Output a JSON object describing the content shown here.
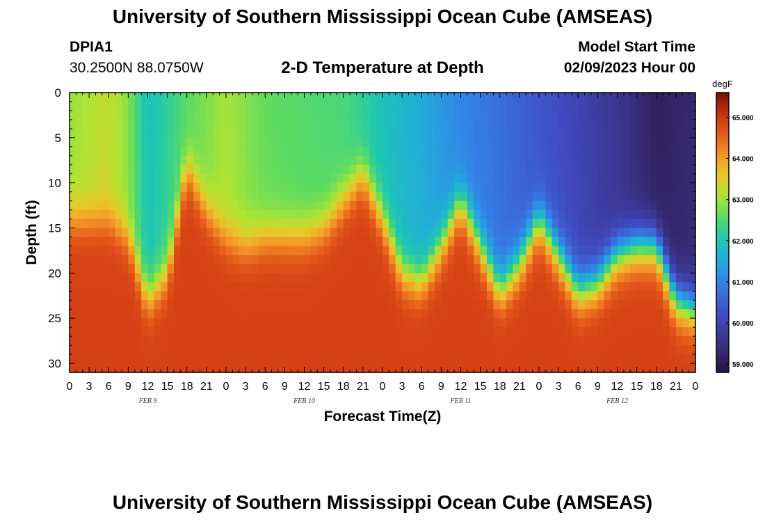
{
  "header": {
    "title": "University of Southern Mississippi Ocean Cube (AMSEAS)",
    "station_id": "DPIA1",
    "station_coords": "30.2500N  88.0750W",
    "plot_title": "2-D Temperature at Depth",
    "model_start_label": "Model Start Time",
    "model_start_value": "02/09/2023 Hour 00"
  },
  "footer": {
    "title": "University of Southern Mississippi Ocean Cube (AMSEAS)"
  },
  "chart_data": {
    "type": "heatmap",
    "xlabel": "Forecast Time(Z)",
    "ylabel": "Depth (ft)",
    "xlim": [
      0,
      96
    ],
    "ylim": [
      0,
      31
    ],
    "y_inverted": true,
    "x_ticks": [
      0,
      3,
      6,
      9,
      12,
      15,
      18,
      21,
      24,
      27,
      30,
      33,
      36,
      39,
      42,
      45,
      48,
      51,
      54,
      57,
      60,
      63,
      66,
      69,
      72,
      75,
      78,
      81,
      84,
      87,
      90,
      93,
      96
    ],
    "x_tick_labels": [
      "0",
      "3",
      "6",
      "9",
      "12",
      "15",
      "18",
      "21",
      "0",
      "3",
      "6",
      "9",
      "12",
      "15",
      "18",
      "21",
      "0",
      "3",
      "6",
      "9",
      "12",
      "15",
      "18",
      "21",
      "0",
      "3",
      "6",
      "9",
      "12",
      "15",
      "18",
      "21",
      "0"
    ],
    "y_ticks": [
      0,
      5,
      10,
      15,
      20,
      25,
      30
    ],
    "y_tick_labels": [
      "0",
      "5",
      "10",
      "15",
      "20",
      "25",
      "30"
    ],
    "day_labels": [
      {
        "text": "FEB 9",
        "hour": 12
      },
      {
        "text": "FEB 10",
        "hour": 36
      },
      {
        "text": "FEB 11",
        "hour": 60
      },
      {
        "text": "FEB 12",
        "hour": 84
      }
    ],
    "colorbar": {
      "unit": "degF",
      "min": 58.8,
      "max": 65.6,
      "ticks": [
        59,
        60,
        61,
        62,
        63,
        64,
        65
      ],
      "tick_labels": [
        "59.000",
        "60.000",
        "61.000",
        "62.000",
        "63.000",
        "64.000",
        "65.000"
      ]
    },
    "surface_temp": [
      {
        "h": 0,
        "v": 63.0
      },
      {
        "h": 6,
        "v": 63.3
      },
      {
        "h": 9,
        "v": 62.9
      },
      {
        "h": 12,
        "v": 62.0
      },
      {
        "h": 18,
        "v": 62.6
      },
      {
        "h": 24,
        "v": 63.1
      },
      {
        "h": 30,
        "v": 62.7
      },
      {
        "h": 36,
        "v": 62.6
      },
      {
        "h": 42,
        "v": 62.5
      },
      {
        "h": 48,
        "v": 62.0
      },
      {
        "h": 54,
        "v": 61.6
      },
      {
        "h": 60,
        "v": 61.1
      },
      {
        "h": 66,
        "v": 60.8
      },
      {
        "h": 72,
        "v": 60.4
      },
      {
        "h": 78,
        "v": 60.1
      },
      {
        "h": 84,
        "v": 59.7
      },
      {
        "h": 90,
        "v": 59.2
      },
      {
        "h": 96,
        "v": 59.4
      }
    ],
    "bottom_temp": 64.9,
    "interface_depth": [
      {
        "h": 0,
        "d": 14
      },
      {
        "h": 6,
        "d": 14
      },
      {
        "h": 9,
        "d": 16
      },
      {
        "h": 12,
        "d": 23
      },
      {
        "h": 15,
        "d": 20
      },
      {
        "h": 18,
        "d": 8
      },
      {
        "h": 21,
        "d": 13
      },
      {
        "h": 24,
        "d": 16
      },
      {
        "h": 27,
        "d": 17
      },
      {
        "h": 30,
        "d": 16
      },
      {
        "h": 36,
        "d": 16
      },
      {
        "h": 39,
        "d": 15
      },
      {
        "h": 42,
        "d": 12
      },
      {
        "h": 45,
        "d": 9
      },
      {
        "h": 48,
        "d": 14
      },
      {
        "h": 51,
        "d": 20
      },
      {
        "h": 54,
        "d": 21
      },
      {
        "h": 57,
        "d": 17
      },
      {
        "h": 60,
        "d": 12
      },
      {
        "h": 63,
        "d": 17
      },
      {
        "h": 66,
        "d": 22
      },
      {
        "h": 69,
        "d": 19
      },
      {
        "h": 72,
        "d": 14
      },
      {
        "h": 75,
        "d": 18
      },
      {
        "h": 78,
        "d": 22
      },
      {
        "h": 81,
        "d": 21
      },
      {
        "h": 84,
        "d": 18
      },
      {
        "h": 87,
        "d": 17
      },
      {
        "h": 90,
        "d": 17
      },
      {
        "h": 93,
        "d": 23
      },
      {
        "h": 96,
        "d": 24
      }
    ]
  }
}
